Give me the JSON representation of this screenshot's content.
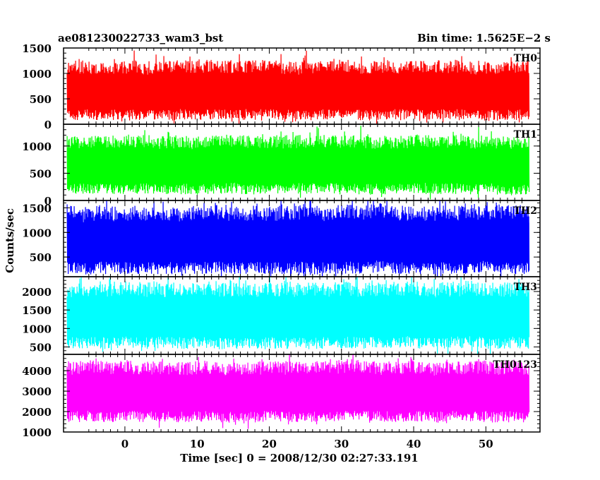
{
  "chart_data": {
    "type": "line",
    "title_left": "ae081230022733_wam3_bst",
    "title_right": "Bin time: 1.5625E−2 s",
    "xlabel": "Time [sec] 0 = 2008/12/30 02:27:33.191",
    "ylabel": "Counts/sec",
    "xlim": [
      -8.5,
      57.5
    ],
    "x_data_range": [
      -8.0,
      56.0
    ],
    "x_ticks": [
      0,
      10,
      20,
      30,
      40,
      50
    ],
    "grid": false,
    "panels": [
      {
        "name": "TH0",
        "color": "#ff0000",
        "ylim": [
          0,
          1500
        ],
        "y_ticks": [
          0,
          500,
          1000,
          1500
        ],
        "typical_range": [
          80,
          1250
        ],
        "mean": 650
      },
      {
        "name": "TH1",
        "color": "#00ff00",
        "ylim": [
          0,
          1400
        ],
        "y_ticks": [
          0,
          500,
          1000
        ],
        "typical_range": [
          120,
          1200
        ],
        "mean": 600
      },
      {
        "name": "TH2",
        "color": "#0000ff",
        "ylim": [
          100,
          1650
        ],
        "y_ticks": [
          500,
          1000,
          1500
        ],
        "typical_range": [
          150,
          1550
        ],
        "mean": 800
      },
      {
        "name": "TH3",
        "color": "#00ffff",
        "ylim": [
          300,
          2400
        ],
        "y_ticks": [
          500,
          1000,
          1500,
          2000
        ],
        "typical_range": [
          450,
          2250
        ],
        "mean": 1300
      },
      {
        "name": "TH0123",
        "color": "#ff00ff",
        "ylim": [
          1000,
          4800
        ],
        "y_ticks": [
          1000,
          2000,
          3000,
          4000
        ],
        "typical_range": [
          1500,
          4500
        ],
        "mean": 2900
      }
    ]
  }
}
